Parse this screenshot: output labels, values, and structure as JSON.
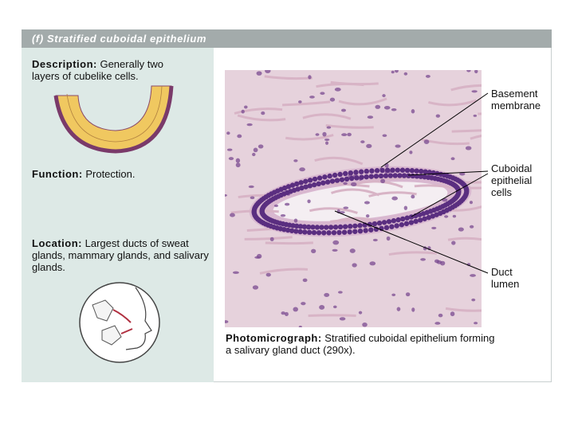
{
  "header": {
    "title": "(f) Stratified cuboidal epithelium"
  },
  "description": {
    "label": "Description:",
    "text": "Generally two layers of cubelike cells."
  },
  "function": {
    "label": "Function:",
    "text": "Protection."
  },
  "location": {
    "label": "Location:",
    "text": "Largest ducts of sweat glands, mammary glands, and salivary glands."
  },
  "micrograph": {
    "labels": [
      "Basement membrane",
      "Cuboidal epithelial cells",
      "Duct lumen"
    ],
    "caption": {
      "label": "Photomicrograph:",
      "text": "Stratified cuboidal epithelium forming a salivary gland duct (290x)."
    }
  }
}
